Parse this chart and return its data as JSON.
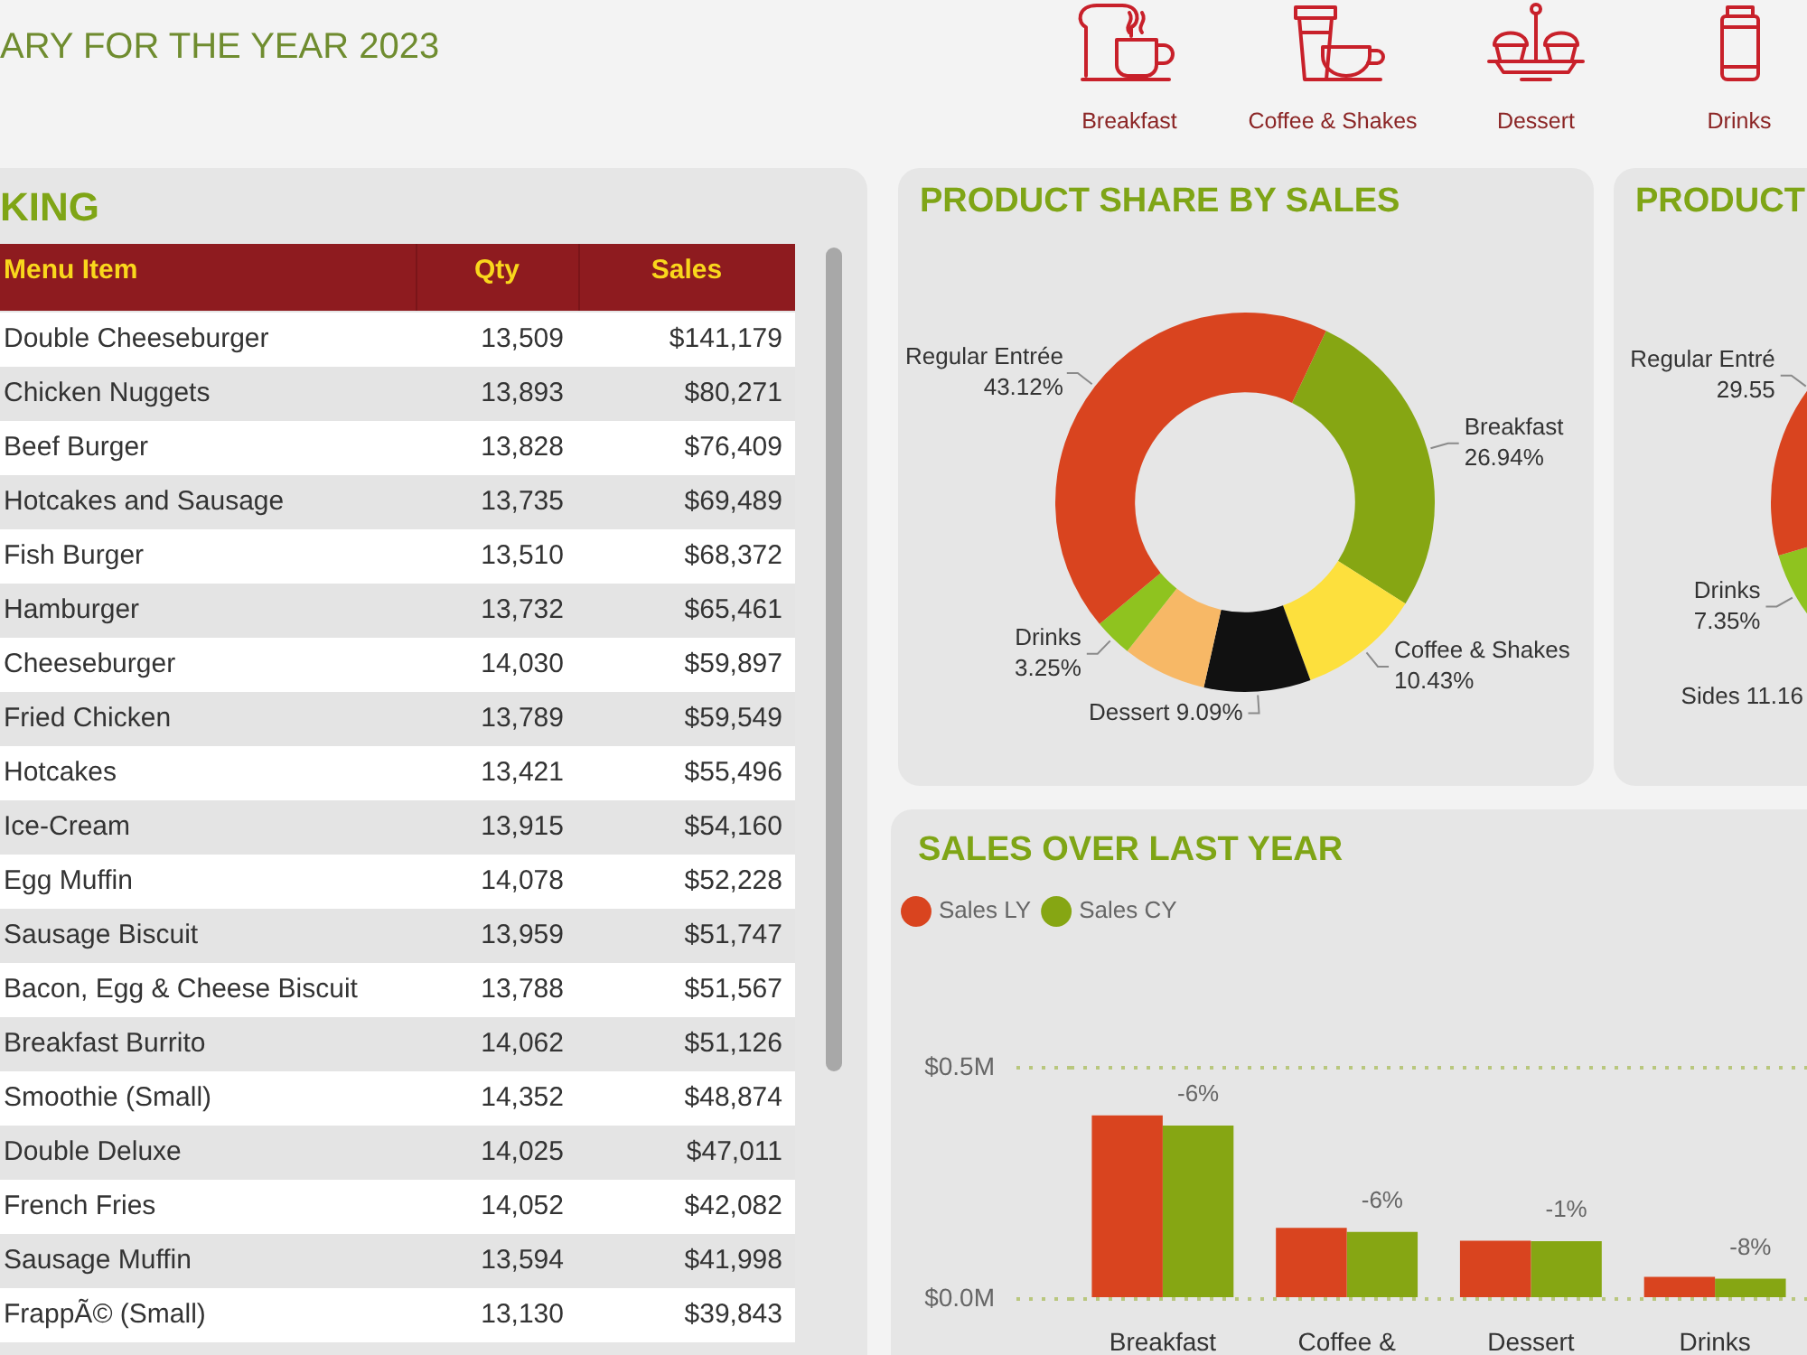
{
  "chart_data": [
    {
      "type": "other",
      "title": "ARY FOR THE YEAR 2023",
      "annotations": [
        "Breakfast",
        "Coffee & Shakes",
        "Dessert",
        "Drinks"
      ]
    },
    {
      "type": "other",
      "title": "KING",
      "xlabel": "Menu Item",
      "categories": [
        "Double Cheeseburger",
        "Chicken Nuggets",
        "Beef Burger",
        "Hotcakes and Sausage",
        "Fish Burger",
        "Hamburger",
        "Cheeseburger",
        "Fried Chicken",
        "Hotcakes",
        "Ice-Cream",
        "Egg Muffin",
        "Sausage Biscuit",
        "Bacon, Egg & Cheese Biscuit",
        "Breakfast Burrito",
        "Smoothie (Small)",
        "Double Deluxe",
        "French Fries",
        "Sausage Muffin",
        "FrappÃ© (Small)"
      ],
      "series": [
        {
          "name": "Qty",
          "values": [
            13509,
            13893,
            13828,
            13735,
            13510,
            13732,
            14030,
            13789,
            13421,
            13915,
            14078,
            13959,
            13788,
            14062,
            14352,
            14025,
            14052,
            13594,
            13130
          ],
          "value_labels": [
            "13,509",
            "13,893",
            "13,828",
            "13,735",
            "13,510",
            "13,732",
            "14,030",
            "13,789",
            "13,421",
            "13,915",
            "14,078",
            "13,959",
            "13,788",
            "14,062",
            "14,352",
            "14,025",
            "14,052",
            "13,594",
            "13,130"
          ]
        },
        {
          "name": "Sales",
          "values": [
            141179,
            80271,
            76409,
            69489,
            68372,
            65461,
            59897,
            59549,
            55496,
            54160,
            52228,
            51747,
            51567,
            51126,
            48874,
            47011,
            42082,
            41998,
            39843
          ],
          "value_labels": [
            "$141,179",
            "$80,271",
            "$76,409",
            "$69,489",
            "$68,372",
            "$65,461",
            "$59,897",
            "$59,549",
            "$55,496",
            "$54,160",
            "$52,228",
            "$51,747",
            "$51,567",
            "$51,126",
            "$48,874",
            "$47,011",
            "$42,082",
            "$41,998",
            "$39,843"
          ]
        }
      ]
    },
    {
      "type": "donut",
      "title": "PRODUCT SHARE BY SALES",
      "categories": [
        "Breakfast",
        "Coffee & Shakes",
        "Dessert",
        null,
        "Drinks",
        "Regular Entrée"
      ],
      "values": [
        26.94,
        10.43,
        9.09,
        7.17,
        3.25,
        43.12
      ],
      "colors": [
        "#86a613",
        "#fde03d",
        "#111111",
        "#f7b866",
        "#8fc31f",
        "#d9441f"
      ],
      "value_labels": [
        "26.94%",
        "10.43%",
        "9.09%",
        null,
        "3.25%",
        "43.12%"
      ]
    },
    {
      "type": "donut",
      "title": "PRODUCT",
      "categories": [
        "Drinks",
        "Regular Entré"
      ],
      "values": [
        7.35,
        29.55
      ],
      "colors": [
        "#8fc31f",
        "#d9441f"
      ],
      "value_labels": [
        "7.35%",
        "29.55"
      ],
      "annotations": [
        "Sides 11.16"
      ]
    },
    {
      "type": "bar",
      "title": "SALES OVER LAST YEAR",
      "categories": [
        "Breakfast",
        "Coffee &",
        "Dessert",
        "Drinks"
      ],
      "series": [
        {
          "name": "Sales LY",
          "color": "#d9441f",
          "values": [
            0.397,
            0.154,
            0.126,
            0.048
          ]
        },
        {
          "name": "Sales CY",
          "color": "#86a613",
          "values": [
            0.375,
            0.145,
            0.125,
            0.044
          ]
        }
      ],
      "ylim": [
        0,
        0.5
      ],
      "yticks": [
        {
          "value": 0,
          "label": "$0.0M"
        },
        {
          "value": 0.5,
          "label": "$0.5M"
        }
      ],
      "grid": "y",
      "legend": "top left",
      "annotations": [
        {
          "text": "-6%",
          "x": "Breakfast",
          "y": 0.375
        },
        {
          "text": "-6%",
          "x": "Coffee &",
          "y": 0.145
        },
        {
          "text": "-1%",
          "x": "Dessert",
          "y": 0.125
        },
        {
          "text": "-8%",
          "x": "Drinks",
          "y": 0.044
        }
      ]
    }
  ]
}
